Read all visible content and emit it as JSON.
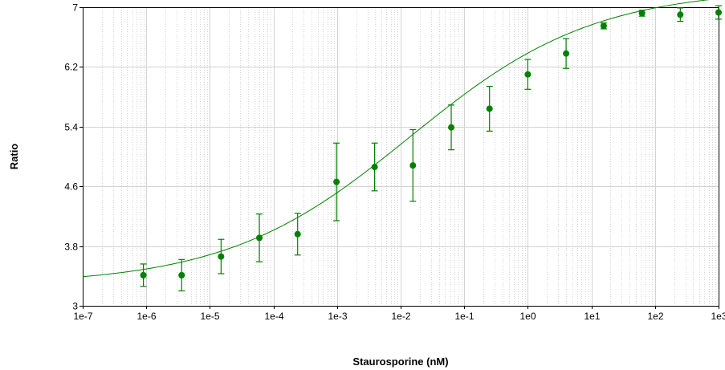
{
  "chart_data": {
    "type": "scatter",
    "title": "",
    "xlabel": "Staurosporine (nM)",
    "ylabel": "Ratio",
    "x_scale": "log",
    "xlim": [
      1e-07,
      1000
    ],
    "ylim": [
      3,
      7
    ],
    "x_ticks": [
      "1e-7",
      "1e-6",
      "1e-5",
      "1e-4",
      "1e-3",
      "1e-2",
      "1e-1",
      "1e0",
      "1e1",
      "1e2",
      "1e3"
    ],
    "y_ticks": [
      "3",
      "3.8",
      "4.6",
      "5.4",
      "6.2",
      "7"
    ],
    "grid": true,
    "legend": "none",
    "colors": {
      "series": "#008000",
      "grid": "#d3d3d3",
      "axis": "#000000"
    },
    "series": [
      {
        "points": [
          {
            "x": 9e-07,
            "y": 3.41,
            "err": 0.15
          },
          {
            "x": 3.6e-06,
            "y": 3.41,
            "err": 0.21
          },
          {
            "x": 1.5e-05,
            "y": 3.66,
            "err": 0.23
          },
          {
            "x": 6e-05,
            "y": 3.91,
            "err": 0.32
          },
          {
            "x": 0.00024,
            "y": 3.96,
            "err": 0.28
          },
          {
            "x": 0.00098,
            "y": 4.66,
            "err": 0.52
          },
          {
            "x": 0.0039,
            "y": 4.86,
            "err": 0.32
          },
          {
            "x": 0.0156,
            "y": 4.88,
            "err": 0.48
          },
          {
            "x": 0.0625,
            "y": 5.39,
            "err": 0.3
          },
          {
            "x": 0.25,
            "y": 5.64,
            "err": 0.3
          },
          {
            "x": 1.0,
            "y": 6.1,
            "err": 0.2
          },
          {
            "x": 4.0,
            "y": 6.38,
            "err": 0.2
          },
          {
            "x": 15.6,
            "y": 6.75,
            "err": 0.04
          },
          {
            "x": 62.5,
            "y": 6.92,
            "err": 0.04
          },
          {
            "x": 250,
            "y": 6.9,
            "err": 0.09
          },
          {
            "x": 1000,
            "y": 6.93,
            "err": 0.09
          }
        ]
      }
    ],
    "fit_curve": {
      "bottom": 3.28,
      "top": 7.25,
      "log_ec50": -1.85,
      "hill_slope": 0.3
    }
  }
}
